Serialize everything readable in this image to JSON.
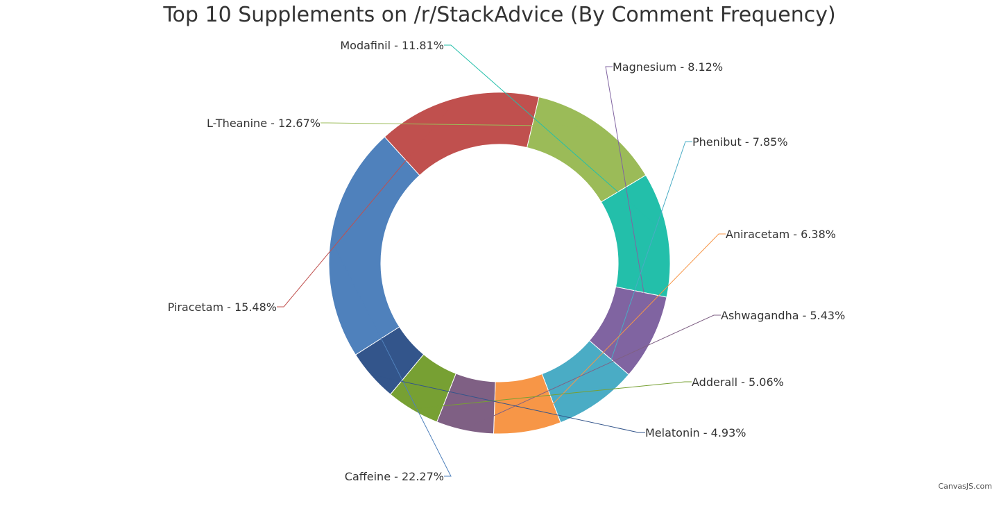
{
  "credit": "CanvasJS.com",
  "chart_data": {
    "type": "pie",
    "variant": "doughnut",
    "title": "Top 10 Supplements on /r/StackAdvice (By Comment Frequency)",
    "label_format": "{name} - {value}%",
    "slices": [
      {
        "name": "Caffeine",
        "value": 22.27,
        "color": "#4F81BC"
      },
      {
        "name": "Piracetam",
        "value": 15.48,
        "color": "#C0504E"
      },
      {
        "name": "L-Theanine",
        "value": 12.67,
        "color": "#9BBB58"
      },
      {
        "name": "Modafinil",
        "value": 11.81,
        "color": "#23BFAA"
      },
      {
        "name": "Magnesium",
        "value": 8.12,
        "color": "#8064A1"
      },
      {
        "name": "Phenibut",
        "value": 7.85,
        "color": "#4AACC5"
      },
      {
        "name": "Aniracetam",
        "value": 6.38,
        "color": "#F79647"
      },
      {
        "name": "Ashwagandha",
        "value": 5.43,
        "color": "#7F6084"
      },
      {
        "name": "Adderall",
        "value": 5.06,
        "color": "#77A033"
      },
      {
        "name": "Melatonin",
        "value": 4.93,
        "color": "#33558B"
      }
    ]
  }
}
